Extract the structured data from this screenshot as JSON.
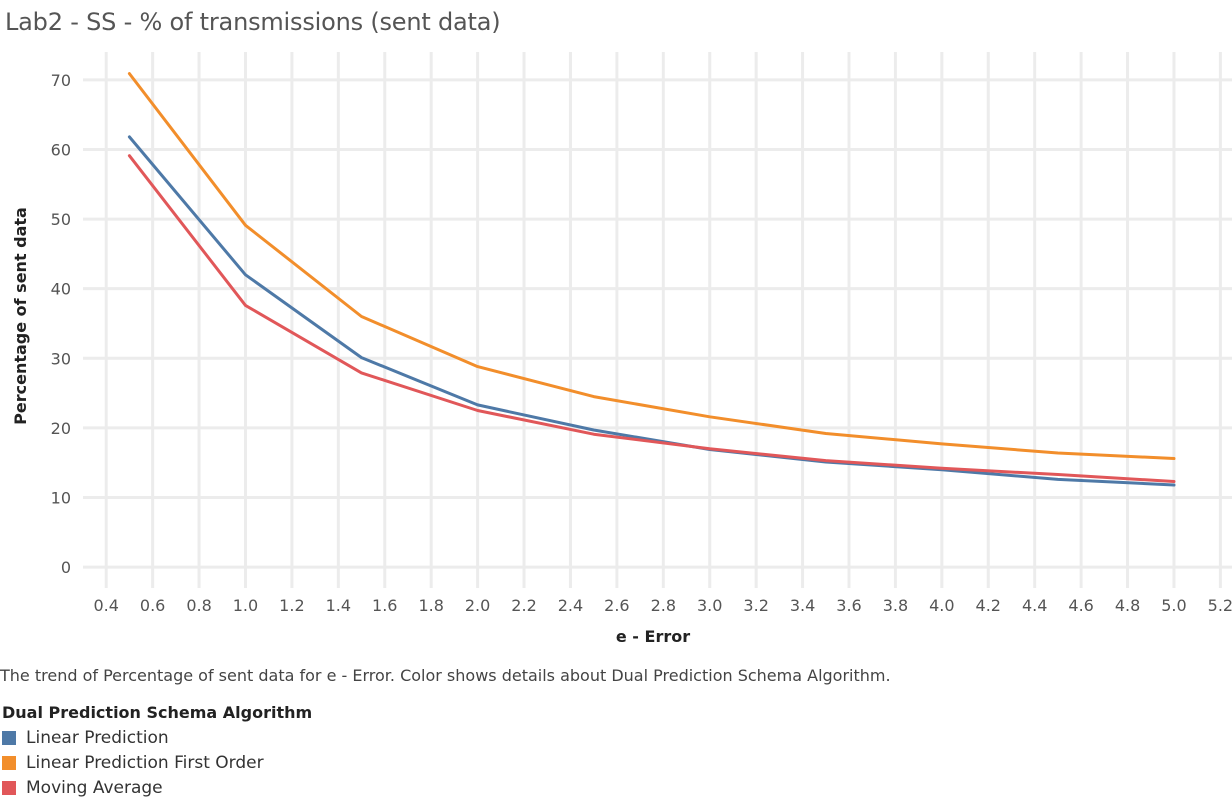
{
  "chart_data": {
    "type": "line",
    "title": "Lab2 - SS - % of transmissions (sent data)",
    "xlabel": "e - Error",
    "ylabel": "Percentage of sent data",
    "xlim": [
      0.3,
      5.25
    ],
    "ylim": [
      -3,
      74
    ],
    "xticks": [
      0.4,
      0.6,
      0.8,
      1.0,
      1.2,
      1.4,
      1.6,
      1.8,
      2.0,
      2.2,
      2.4,
      2.6,
      2.8,
      3.0,
      3.2,
      3.4,
      3.6,
      3.8,
      4.0,
      4.2,
      4.4,
      4.6,
      4.8,
      5.0,
      5.2
    ],
    "xtick_labels": [
      "0.4",
      "0.6",
      "0.8",
      "1.0",
      "1.2",
      "1.4",
      "1.6",
      "1.8",
      "2.0",
      "2.2",
      "2.4",
      "2.6",
      "2.8",
      "3.0",
      "3.2",
      "3.4",
      "3.6",
      "3.8",
      "4.0",
      "4.2",
      "4.4",
      "4.6",
      "4.8",
      "5.0",
      "5.2"
    ],
    "yticks": [
      0,
      10,
      20,
      30,
      40,
      50,
      60,
      70
    ],
    "ytick_labels": [
      "0",
      "10",
      "20",
      "30",
      "40",
      "50",
      "60",
      "70"
    ],
    "grid": true,
    "x": [
      0.5,
      1.0,
      1.5,
      2.0,
      2.5,
      3.0,
      3.5,
      4.0,
      4.5,
      5.0
    ],
    "series": [
      {
        "name": "Linear Prediction",
        "color": "#4e79a7",
        "values": [
          61.8,
          42.0,
          30.1,
          23.3,
          19.7,
          16.9,
          15.1,
          14.0,
          12.6,
          11.8
        ]
      },
      {
        "name": "Linear Prediction First Order",
        "color": "#f28e2b",
        "values": [
          70.9,
          49.1,
          36.0,
          28.8,
          24.5,
          21.6,
          19.2,
          17.7,
          16.4,
          15.6
        ]
      },
      {
        "name": "Moving Average",
        "color": "#e15759",
        "values": [
          59.1,
          37.6,
          27.9,
          22.5,
          19.1,
          17.0,
          15.3,
          14.2,
          13.3,
          12.3
        ]
      }
    ],
    "caption": "The trend of Percentage of sent data for e - Error.  Color shows details about Dual Prediction Schema Algorithm.",
    "legend_title": "Dual Prediction Schema Algorithm",
    "legend_position": "bottom-left"
  }
}
